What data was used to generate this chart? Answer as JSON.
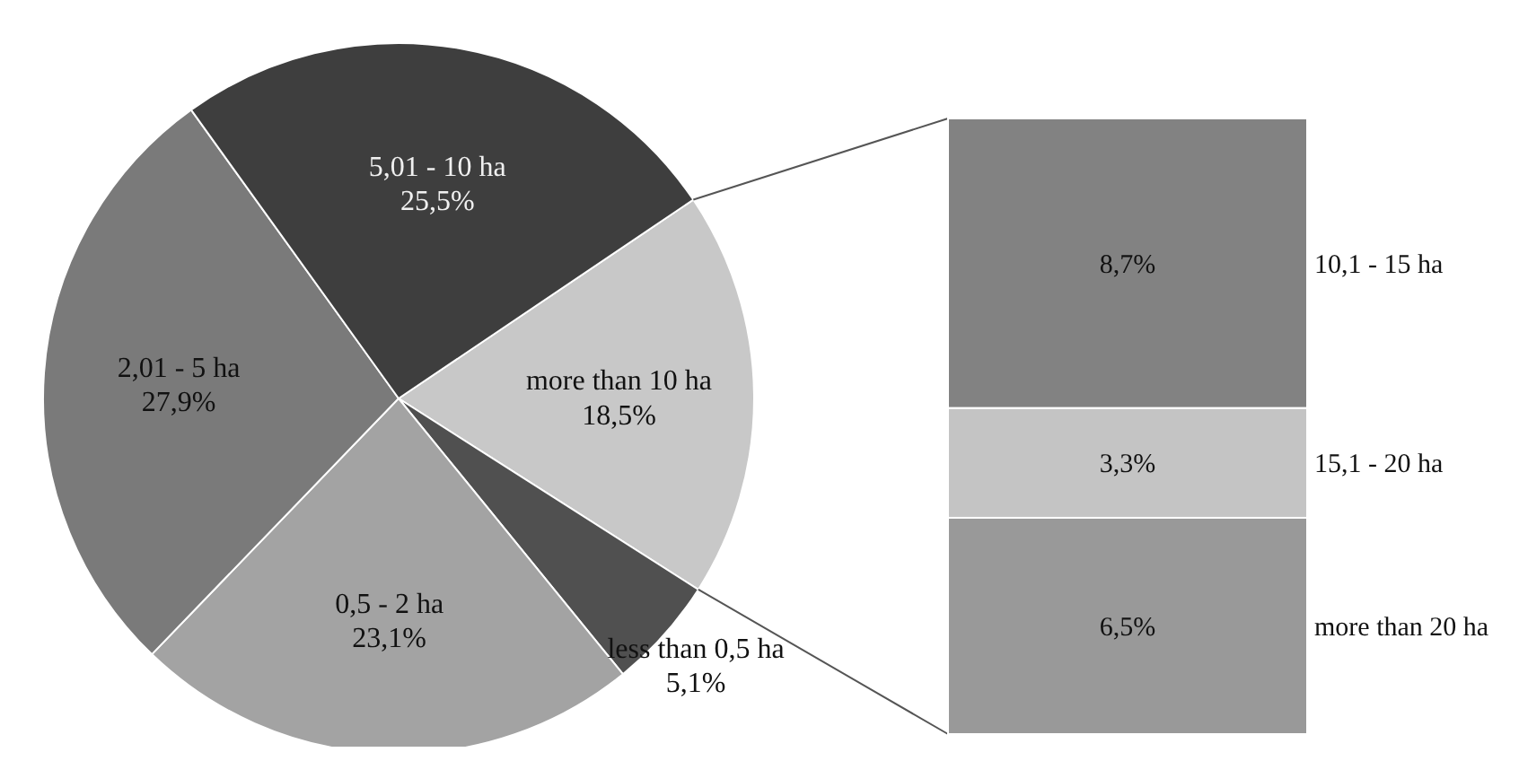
{
  "chart_data": [
    {
      "type": "pie",
      "categories": [
        "more than 10 ha",
        "less than 0,5 ha",
        "0,5 - 2 ha",
        "2,01 - 5 ha",
        "5,01 - 10 ha"
      ],
      "values": [
        18.5,
        5.1,
        23.1,
        27.9,
        25.5
      ],
      "colors": [
        "#c8c8c8",
        "#505050",
        "#a3a3a3",
        "#7a7a7a",
        "#3e3e3e"
      ],
      "value_labels": [
        "18,5%",
        "5,1%",
        "23,1%",
        "27,9%",
        "25,5%"
      ]
    },
    {
      "type": "bar",
      "stacked": true,
      "categories": [
        null
      ],
      "series": [
        {
          "name": "more than 20 ha",
          "color": "#999999",
          "values": [
            6.5
          ],
          "value_labels": [
            "6,5%"
          ]
        },
        {
          "name": "15,1 - 20 ha",
          "color": "#c4c4c4",
          "values": [
            3.3
          ],
          "value_labels": [
            "3,3%"
          ]
        },
        {
          "name": "10,1 - 15 ha",
          "color": "#828282",
          "values": [
            8.7
          ],
          "value_labels": [
            "8,7%"
          ]
        }
      ]
    }
  ]
}
